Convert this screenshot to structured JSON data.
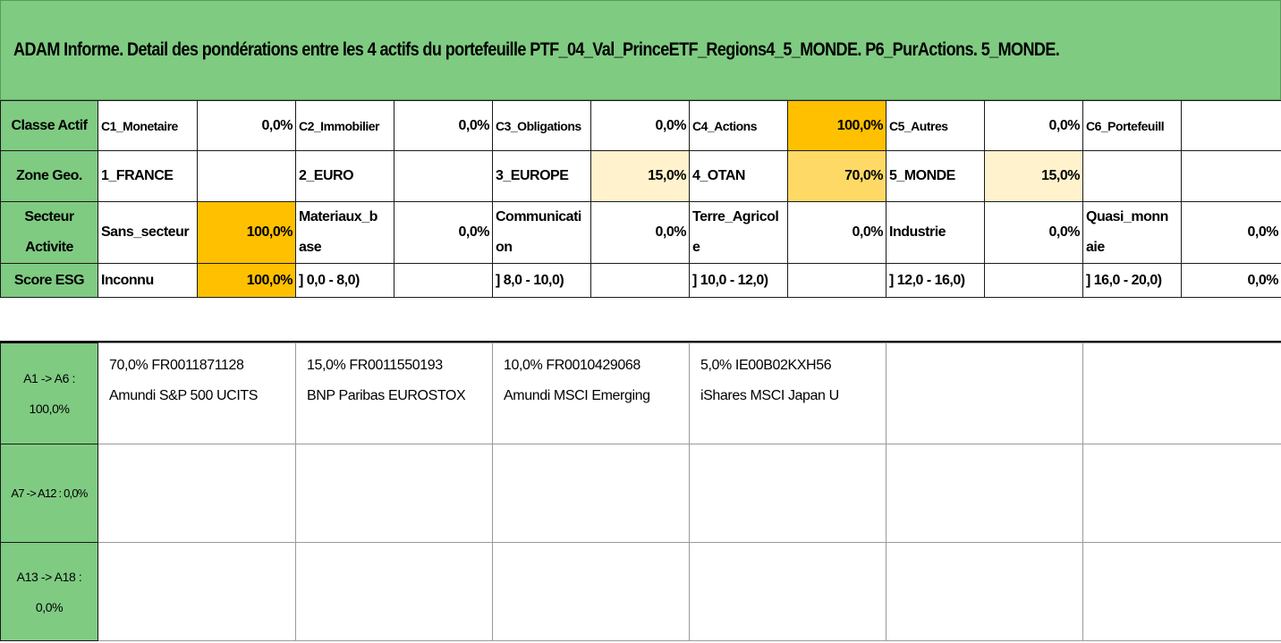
{
  "title": "ADAM Informe. Detail des pondérations entre les 4 actifs du portefeuille PTF_04_Val_PrinceETF_Regions4_5_MONDE. P6_PurActions. 5_MONDE.",
  "rows": {
    "classe": {
      "label": "Classe Actif",
      "cells": [
        {
          "name": "C1_Monetaire",
          "value": "0,0%"
        },
        {
          "name": "C2_Immobilier",
          "value": "0,0%"
        },
        {
          "name": "C3_Obligations",
          "value": "0,0%"
        },
        {
          "name": "C4_Actions",
          "value": "100,0%"
        },
        {
          "name": "C5_Autres",
          "value": "0,0%"
        },
        {
          "name": "C6_Portefeuill",
          "value": ""
        }
      ]
    },
    "zone": {
      "label": "Zone Geo.",
      "cells": [
        {
          "name": "1_FRANCE",
          "value": ""
        },
        {
          "name": "2_EURO",
          "value": ""
        },
        {
          "name": "3_EUROPE",
          "value": "15,0%"
        },
        {
          "name": "4_OTAN",
          "value": "70,0%"
        },
        {
          "name": "5_MONDE",
          "value": "15,0%"
        },
        {
          "name": "",
          "value": ""
        }
      ]
    },
    "secteur": {
      "label_line1": "Secteur",
      "label_line2": "Activite",
      "cells": [
        {
          "name_line1": "Sans_secteur",
          "name_line2": "",
          "value": "100,0%"
        },
        {
          "name_line1": "Materiaux_b",
          "name_line2": "ase",
          "value": "0,0%"
        },
        {
          "name_line1": "Communicati",
          "name_line2": "on",
          "value": "0,0%"
        },
        {
          "name_line1": "Terre_Agricol",
          "name_line2": "e",
          "value": "0,0%"
        },
        {
          "name_line1": "Industrie",
          "name_line2": "",
          "value": "0,0%"
        },
        {
          "name_line1": "Quasi_monn",
          "name_line2": "aie",
          "value": "0,0%"
        }
      ]
    },
    "esg": {
      "label": "Score ESG",
      "cells": [
        {
          "name": "Inconnu",
          "value": "100,0%"
        },
        {
          "name": "] 0,0 - 8,0)",
          "value": ""
        },
        {
          "name": "] 8,0 - 10,0)",
          "value": ""
        },
        {
          "name": "] 10,0 - 12,0)",
          "value": ""
        },
        {
          "name": "] 12,0 - 16,0)",
          "value": ""
        },
        {
          "name": "] 16,0 - 20,0)",
          "value": "0,0%"
        }
      ]
    }
  },
  "assets": {
    "groups": [
      {
        "label_line1": "A1 -> A6 :",
        "label_line2": "100,0%",
        "items": [
          {
            "line1": "70,0% FR0011871128",
            "line2": "Amundi S&P 500 UCITS"
          },
          {
            "line1": "15,0% FR0011550193",
            "line2": "BNP Paribas EUROSTOX"
          },
          {
            "line1": "10,0% FR0010429068",
            "line2": "Amundi MSCI Emerging"
          },
          {
            "line1": "5,0% IE00B02KXH56",
            "line2": "iShares MSCI Japan U"
          }
        ]
      },
      {
        "label_line1": "A7 -> A12 : 0,0%",
        "label_line2": ""
      },
      {
        "label_line1": "A13 -> A18 :",
        "label_line2": "0,0%"
      }
    ]
  },
  "colors": {
    "header_green": "#7fcb82",
    "orange_100": "#ffc000",
    "yellow_70": "#ffd966",
    "cream_15": "#fff2cc"
  }
}
